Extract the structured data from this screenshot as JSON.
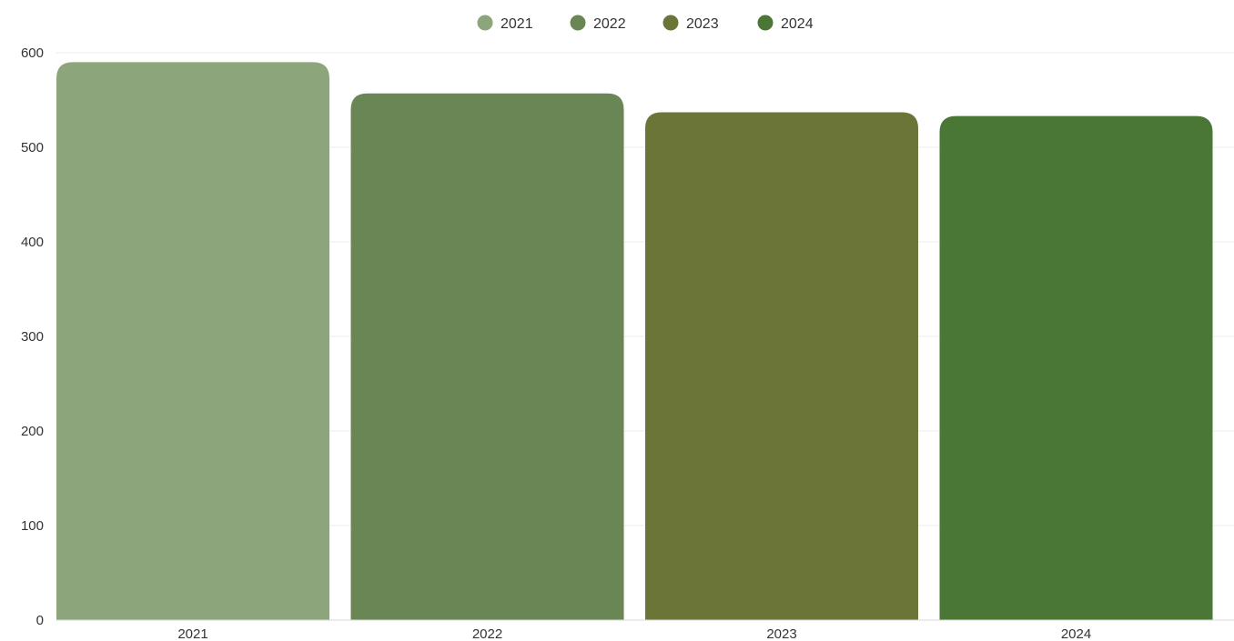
{
  "chart_data": {
    "type": "bar",
    "title": "",
    "xlabel": "",
    "ylabel": "",
    "categories": [
      "2021",
      "2022",
      "2023",
      "2024"
    ],
    "values": [
      590,
      557,
      537,
      533
    ],
    "ylim": [
      0,
      600
    ],
    "yticks": [
      0,
      100,
      200,
      300,
      400,
      500,
      600
    ],
    "colors": [
      "#8da57b",
      "#698654",
      "#6a7537",
      "#4a7735"
    ],
    "legend": {
      "position": "top-center",
      "entries": [
        "2021",
        "2022",
        "2023",
        "2024"
      ]
    },
    "grid": true
  }
}
